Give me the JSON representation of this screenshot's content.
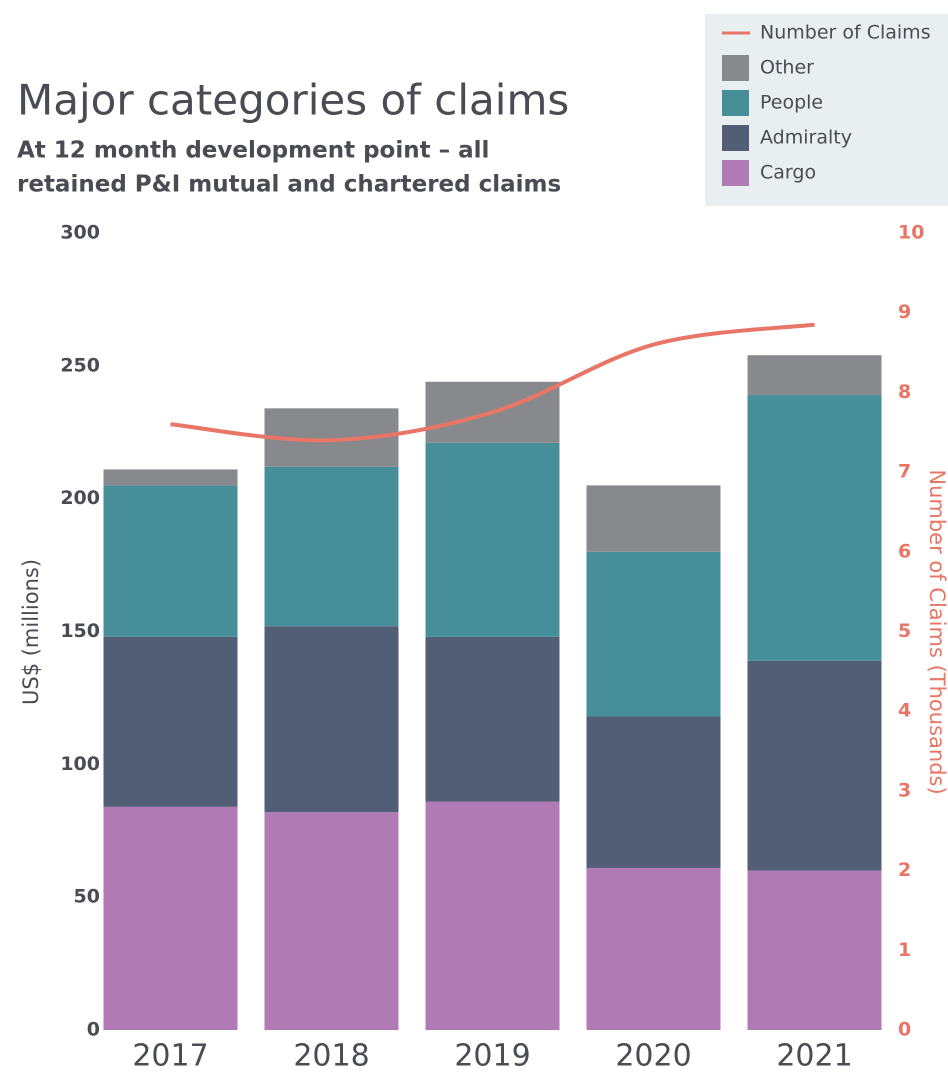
{
  "chart_data": {
    "type": "bar",
    "title": "Major categories of claims",
    "subtitle": [
      "At 12 month development point – all",
      "retained P&I mutual and chartered claims"
    ],
    "ylabel": "US$ (millions)",
    "y2label": "Number of Claims (Thousands)",
    "stacked": true,
    "categories": [
      "2017",
      "2018",
      "2019",
      "2020",
      "2021"
    ],
    "series": [
      {
        "name": "Number of Claims",
        "type": "line",
        "axis": "y2",
        "color": "#e87565",
        "values": [
          7.6,
          7.4,
          7.75,
          8.6,
          8.85
        ]
      },
      {
        "name": "Other",
        "color": "#88898d",
        "values": [
          6,
          22,
          23,
          25,
          15
        ]
      },
      {
        "name": "People",
        "color": "#468f98",
        "values": [
          57,
          60,
          73,
          62,
          100
        ]
      },
      {
        "name": "Admiralty",
        "color": "#525e75",
        "values": [
          64,
          70,
          62,
          57,
          79
        ]
      },
      {
        "name": "Cargo",
        "color": "#b07ab4",
        "values": [
          84,
          82,
          86,
          61,
          60
        ]
      }
    ],
    "ylim": [
      0,
      300
    ],
    "yticks": [
      0,
      50,
      100,
      150,
      200,
      250,
      300
    ],
    "y2lim": [
      0,
      10
    ],
    "y2ticks": [
      0,
      1,
      2,
      3,
      4,
      5,
      6,
      7,
      8,
      9,
      10
    ],
    "y2color": "#e87565",
    "legend": "top-right"
  }
}
